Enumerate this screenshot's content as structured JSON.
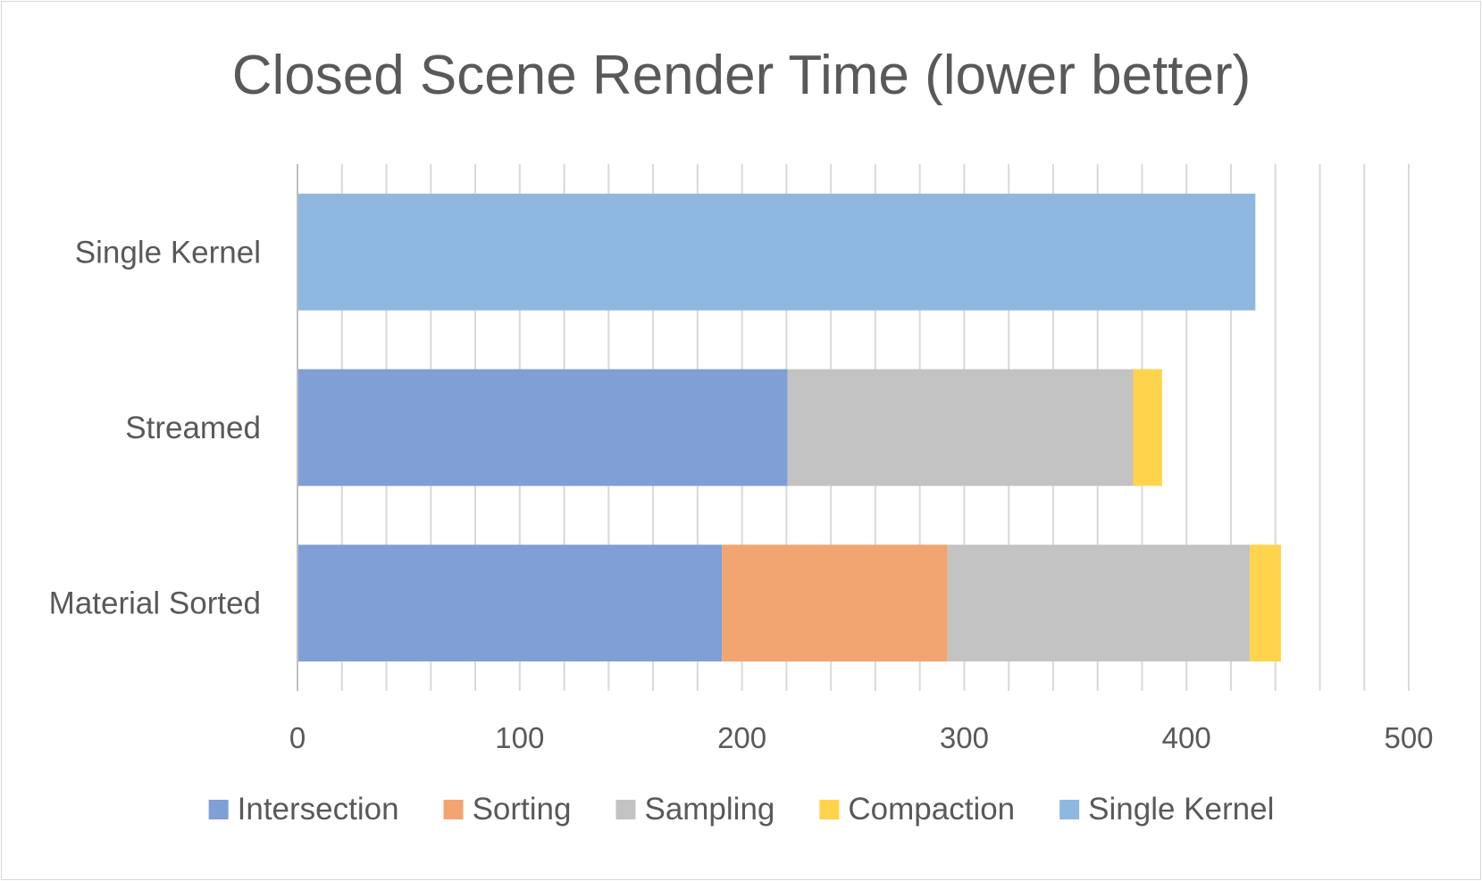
{
  "chart_data": {
    "type": "bar",
    "orientation": "horizontal",
    "stacked": true,
    "title": "Closed Scene Render Time (lower better)",
    "categories": [
      "Single Kernel",
      "Streamed",
      "Material Sorted"
    ],
    "series": [
      {
        "name": "Intersection",
        "color": "#7f9fd6",
        "values": [
          0,
          220.5,
          191
        ]
      },
      {
        "name": "Sorting",
        "color": "#f2a570",
        "values": [
          0,
          0,
          101.5
        ]
      },
      {
        "name": "Sampling",
        "color": "#c3c3c3",
        "values": [
          0,
          155.5,
          136
        ]
      },
      {
        "name": "Compaction",
        "color": "#ffd44c",
        "values": [
          0,
          13,
          14
        ]
      },
      {
        "name": "Single Kernel",
        "color": "#8fb8e0",
        "values": [
          431,
          0,
          0
        ]
      }
    ],
    "xlim": [
      0,
      500
    ],
    "xticks": [
      "0",
      "100",
      "200",
      "300",
      "400",
      "500"
    ],
    "minor_gridline_step": 20,
    "grid": true,
    "legend": "bottom",
    "xlabel": "",
    "ylabel": ""
  }
}
